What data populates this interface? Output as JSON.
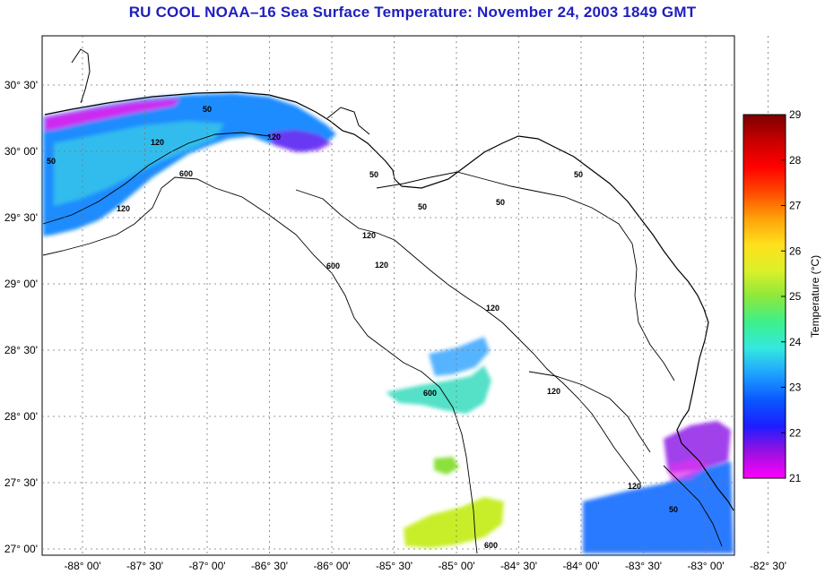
{
  "title": "RU COOL  NOAA–16  Sea Surface Temperature:  November 24, 2003 1849 GMT",
  "colorbar": {
    "label": "Temperature (°C)",
    "ticks": [
      "29",
      "28",
      "27",
      "26",
      "25",
      "24",
      "23",
      "22",
      "21"
    ],
    "colors": [
      "#ff00ff",
      "#9b10e0",
      "#1d1dff",
      "#0a57ff",
      "#1ea0ff",
      "#34e8e0",
      "#3cf08c",
      "#8ce83c",
      "#dcf02a",
      "#ffe01c",
      "#ffa20a",
      "#ff4a00",
      "#ff0000",
      "#c80000",
      "#7a0000"
    ]
  },
  "axes": {
    "lat_labels": [
      "30° 30'",
      "30° 00'",
      "29° 30'",
      "29° 00'",
      "28° 30'",
      "28° 00'",
      "27° 30'",
      "27° 00'"
    ],
    "lon_labels": [
      "-88° 00'",
      "-87° 30'",
      "-87° 00'",
      "-86° 30'",
      "-86° 00'",
      "-85° 30'",
      "-85° 00'",
      "-84° 30'",
      "-84° 00'",
      "-83° 30'",
      "-83° 00'",
      "-82° 30'"
    ]
  },
  "contour_labels": [
    "50",
    "50",
    "120",
    "120",
    "120",
    "600",
    "50",
    "50",
    "50",
    "120",
    "600",
    "120",
    "120",
    "600",
    "50",
    "120",
    "120",
    "50",
    "600"
  ],
  "colors": {
    "title": "#1f1fbf",
    "land": "#ffffff",
    "coast": "#000000",
    "grid": "#666666"
  }
}
